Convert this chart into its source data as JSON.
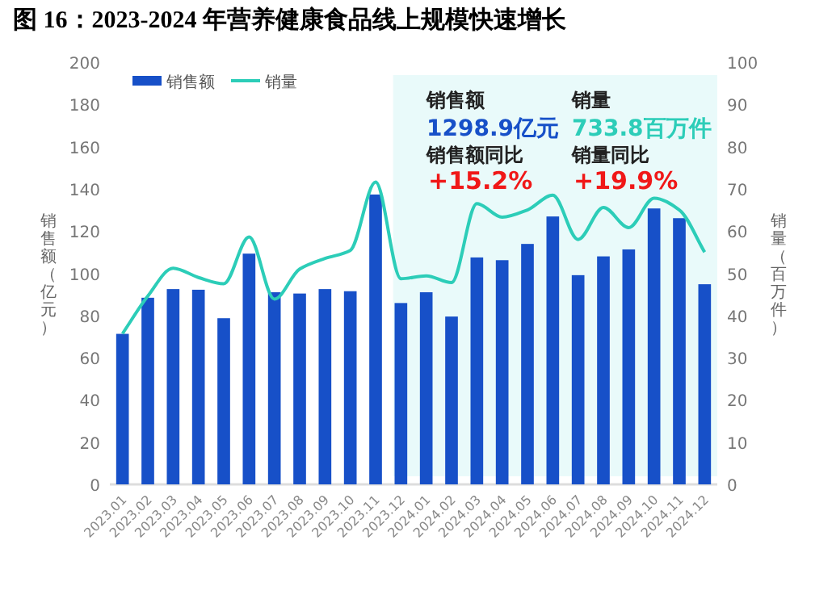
{
  "chart_data": {
    "type": "bar",
    "title": "图 16：2023-2024 年营养健康食品线上规模快速增长",
    "categories": [
      "2023.01",
      "2023.02",
      "2023.03",
      "2023.04",
      "2023.05",
      "2023.06",
      "2023.07",
      "2023.08",
      "2023.09",
      "2023.10",
      "2023.11",
      "2023.12",
      "2024.01",
      "2024.02",
      "2024.03",
      "2024.04",
      "2024.05",
      "2024.06",
      "2024.07",
      "2024.08",
      "2024.09",
      "2024.10",
      "2024.11",
      "2024.12"
    ],
    "series": [
      {
        "name": "销售额",
        "color": "#1750c8",
        "values": [
          71.3,
          88.4,
          92.5,
          92.2,
          78.7,
          109.3,
          91,
          90.4,
          92.5,
          91.5,
          137.3,
          85.9,
          91,
          79.5,
          107.5,
          106.2,
          113.9,
          126.9,
          99.1,
          108,
          111.3,
          130.7,
          126.1,
          94.8
        ]
      },
      {
        "name": "销量",
        "type": "line",
        "axis": "y2",
        "color": "#2ccdb8",
        "values": [
          35.7,
          44.6,
          51.2,
          49,
          47.5,
          58.6,
          43.9,
          51,
          53.5,
          55.4,
          71.6,
          48.7,
          49.4,
          47.8,
          66.5,
          63.3,
          65,
          68.5,
          58,
          65.6,
          60.8,
          67.8,
          65,
          55
        ]
      }
    ],
    "ylabel": "销售额（亿元）",
    "y2label": "销量（百万件）",
    "ylim": [
      0,
      200
    ],
    "yticks": [
      0,
      20,
      40,
      60,
      80,
      100,
      120,
      140,
      160,
      180,
      200
    ],
    "y2lim": [
      0,
      100
    ],
    "y2ticks": [
      0,
      10,
      20,
      30,
      40,
      50,
      60,
      70,
      80,
      90,
      100
    ],
    "bands": [
      {
        "axis": "x",
        "from": "2023.12",
        "to": "2024.12",
        "color": "#e9fafa"
      }
    ],
    "annotations": [
      "销售额",
      "1298.9亿元",
      "销量",
      "733.8百万件",
      "销售额同比",
      "+15.2%",
      "销量同比",
      "+19.9%"
    ],
    "legend": "top left",
    "marker": "none",
    "line_style": "solid"
  }
}
